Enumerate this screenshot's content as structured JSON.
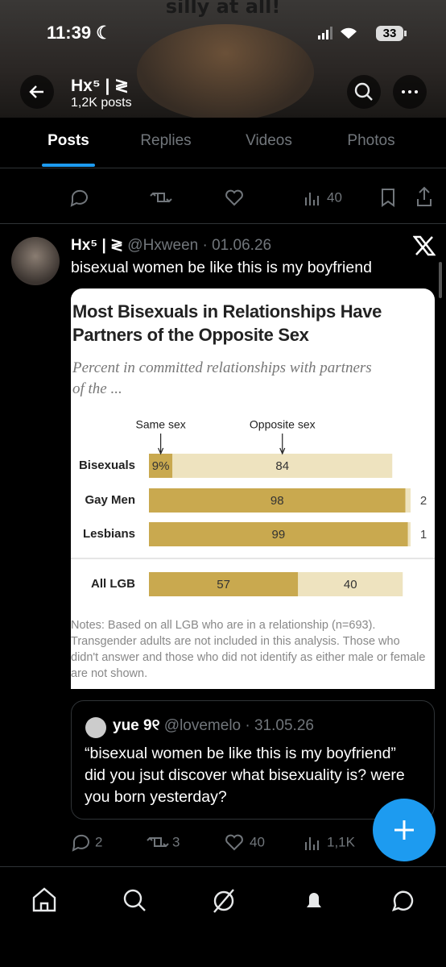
{
  "status_bar": {
    "time": "11:39",
    "battery": "33"
  },
  "banner_text": "silly at all!",
  "header": {
    "name": "Hx⁵ | ≷",
    "posts_count": "1,2K posts"
  },
  "tabs": [
    "Posts",
    "Replies",
    "Videos",
    "Photos"
  ],
  "previous_post": {
    "views": "40"
  },
  "post": {
    "author": "Hx⁵ | ≷",
    "handle_date": "@Hxween · 01.06.26",
    "text": "bisexual women be like this is my boyfriend",
    "chart_data": {
      "type": "bar",
      "stacked": true,
      "horizontal": true,
      "title": "Most Bisexuals in Relationships Have Partners of the Opposite Sex",
      "subtitle": "Percent in committed relationships with partners of the ...",
      "categories": [
        "Bisexuals",
        "Gay Men",
        "Lesbians",
        "All LGB"
      ],
      "xlim": [
        0,
        100
      ],
      "series": [
        {
          "name": "Same sex",
          "color": "#c9a94f",
          "values": [
            9,
            98,
            99,
            57
          ],
          "value_labels": [
            "9%",
            "98",
            "99",
            "57"
          ]
        },
        {
          "name": "Opposite sex",
          "color": "#eee3bf",
          "values": [
            84,
            2,
            1,
            40
          ]
        }
      ],
      "notes": "Notes: Based on all LGB who are in a relationship (n=693). Transgender adults are not included in this analysis. Those who didn't answer and those who did not identify as either male or female are not shown."
    },
    "quote": {
      "author": "yue 9୧",
      "handle_date": "@lovemelo · 31.05.26",
      "text": "“bisexual women be like this is my boyfriend” did you jsut discover what bisexuality is? were you born yesterday?"
    },
    "stats": {
      "replies": "2",
      "reposts": "3",
      "likes": "40",
      "views": "1,1K"
    }
  }
}
